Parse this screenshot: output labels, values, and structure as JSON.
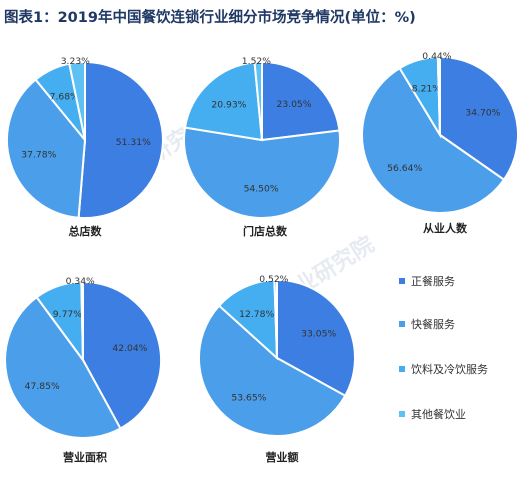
{
  "title": "图表1：2019年中国餐饮连锁行业细分市场竞争情况(单位：%)",
  "legend": {
    "entries": [
      {
        "label": "正餐服务",
        "color": "#3d7ee2"
      },
      {
        "label": "快餐服务",
        "color": "#4b9ee9"
      },
      {
        "label": "饮料及冷饮服务",
        "color": "#44aef1"
      },
      {
        "label": "其他餐饮业",
        "color": "#5ec1f5"
      }
    ]
  },
  "chart_data": [
    {
      "type": "pie",
      "title": "总店数",
      "categories": [
        "正餐服务",
        "快餐服务",
        "饮料及冷饮服务",
        "其他餐饮业"
      ],
      "values": [
        51.31,
        37.78,
        7.68,
        3.23
      ],
      "labels": [
        "51.31%",
        "37.78%",
        "7.68%",
        "3.23%"
      ]
    },
    {
      "type": "pie",
      "title": "门店总数",
      "categories": [
        "正餐服务",
        "快餐服务",
        "饮料及冷饮服务",
        "其他餐饮业"
      ],
      "values": [
        23.05,
        54.5,
        20.93,
        1.52
      ],
      "labels": [
        "23.05%",
        "54.50%",
        "20.93%",
        "1.52%"
      ]
    },
    {
      "type": "pie",
      "title": "从业人数",
      "categories": [
        "正餐服务",
        "快餐服务",
        "饮料及冷饮服务",
        "其他餐饮业"
      ],
      "values": [
        34.7,
        56.64,
        8.21,
        0.44
      ],
      "labels": [
        "34.70%",
        "56.64%",
        "8.21%",
        "0.44%"
      ]
    },
    {
      "type": "pie",
      "title": "营业面积",
      "categories": [
        "正餐服务",
        "快餐服务",
        "饮料及冷饮服务",
        "其他餐饮业"
      ],
      "values": [
        42.04,
        47.85,
        9.77,
        0.34
      ],
      "labels": [
        "42.04%",
        "47.85%",
        "9.77%",
        "0.34%"
      ]
    },
    {
      "type": "pie",
      "title": "营业额",
      "categories": [
        "正餐服务",
        "快餐服务",
        "饮料及冷饮服务",
        "其他餐饮业"
      ],
      "values": [
        33.05,
        53.65,
        12.78,
        0.52
      ],
      "labels": [
        "33.05%",
        "53.65%",
        "12.78%",
        "0.52%"
      ]
    }
  ]
}
